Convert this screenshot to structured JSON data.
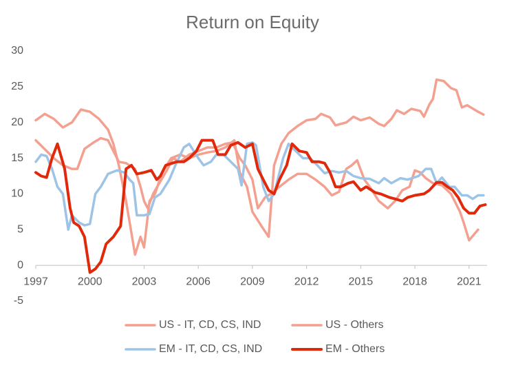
{
  "chart_data": {
    "type": "line",
    "title": "Return on Equity",
    "xlim": [
      1997,
      2022
    ],
    "xticks": [
      1997,
      2000,
      2003,
      2006,
      2009,
      2012,
      2015,
      2018,
      2021
    ],
    "ylim": [
      -5,
      30
    ],
    "yticks": [
      -5,
      0,
      5,
      10,
      15,
      20,
      25,
      30
    ],
    "grid": false,
    "legend": "bottom",
    "series": [
      {
        "name": "US - IT, CD, CS, IND",
        "color": "#f4a090",
        "x": [
          1997,
          1997.5,
          1998,
          1998.5,
          1999,
          1999.5,
          2000,
          2000.5,
          2001,
          2001.3,
          2001.6,
          2002,
          2002.3,
          2002.5,
          2002.8,
          2003,
          2003.3,
          2003.6,
          2004,
          2004.5,
          2005,
          2005.5,
          2006,
          2006.5,
          2007,
          2007.5,
          2008,
          2008.3,
          2008.7,
          2009,
          2009.5,
          2009.9,
          2010.2,
          2010.6,
          2011,
          2011.5,
          2012,
          2012.5,
          2012.8,
          2013.3,
          2013.6,
          2014.2,
          2014.6,
          2015,
          2015.5,
          2016,
          2016.3,
          2016.7,
          2017,
          2017.4,
          2017.8,
          2018.3,
          2018.5,
          2018.8,
          2019,
          2019.2,
          2019.6,
          2020,
          2020.3,
          2020.6,
          2020.9,
          2021.5,
          2021.8
        ],
        "values": [
          20.3,
          21.2,
          20.5,
          19.3,
          20,
          21.8,
          21.5,
          20.5,
          19,
          17,
          14,
          9,
          4.5,
          1.5,
          4,
          2.5,
          9,
          10,
          13,
          15,
          15.5,
          15,
          15.5,
          15.8,
          16,
          16.5,
          17.5,
          13,
          11,
          7.5,
          5.5,
          4,
          14,
          17,
          18.5,
          19.5,
          20.3,
          20.5,
          21.2,
          20.7,
          19.6,
          20,
          20.8,
          20.3,
          20.7,
          19.8,
          19.5,
          20.5,
          21.7,
          21.2,
          21.9,
          21.6,
          20.8,
          22.5,
          23.3,
          26,
          25.8,
          24.8,
          24.5,
          22.1,
          22.4,
          21.5,
          21.1
        ]
      },
      {
        "name": "US - Others",
        "color": "#f4a090",
        "x": [
          1997,
          1997.4,
          1998,
          1998.5,
          1999,
          1999.3,
          1999.7,
          2000.2,
          2000.6,
          2001,
          2001.3,
          2001.6,
          2002,
          2002.5,
          2002.8,
          2003,
          2003.2,
          2003.5,
          2003.8,
          2004.3,
          2004.6,
          2005,
          2005.5,
          2006,
          2006.5,
          2007,
          2007.5,
          2007.9,
          2008.3,
          2008.6,
          2009,
          2009.3,
          2009.7,
          2010,
          2010.5,
          2011,
          2011.5,
          2012,
          2012.5,
          2013,
          2013.4,
          2013.8,
          2014.2,
          2014.5,
          2014.8,
          2015.2,
          2015.5,
          2016,
          2016.5,
          2016.9,
          2017.3,
          2017.7,
          2018,
          2018.3,
          2018.6,
          2019,
          2019.5,
          2020,
          2020.5,
          2020.7,
          2021,
          2021.5
        ],
        "values": [
          17.5,
          16.5,
          15,
          14,
          13.5,
          13.5,
          16.3,
          17.2,
          17.8,
          17.5,
          16,
          14.5,
          14.3,
          13.5,
          11,
          9,
          8,
          10,
          11.3,
          13.5,
          15,
          14.5,
          15.5,
          16,
          16.5,
          16.5,
          17,
          17.2,
          15,
          14,
          12,
          8,
          9.5,
          10,
          11,
          12,
          12.8,
          12.8,
          12,
          11,
          9.8,
          10.3,
          13.5,
          14,
          14.7,
          12,
          11,
          9,
          8,
          9,
          10.5,
          11,
          13.3,
          13,
          12.2,
          11.5,
          11.2,
          10,
          7.5,
          6,
          3.5,
          5
        ]
      },
      {
        "name": "EM - IT, CD, CS, IND",
        "color": "#9dc3e6",
        "x": [
          1997,
          1997.3,
          1997.6,
          1997.9,
          1998.2,
          1998.5,
          1998.8,
          1999,
          1999.4,
          1999.7,
          2000,
          2000.3,
          2000.6,
          2001,
          2001.5,
          2001.9,
          2002.2,
          2002.4,
          2002.6,
          2003,
          2003.3,
          2003.6,
          2003.9,
          2004.4,
          2004.7,
          2005.2,
          2005.5,
          2006,
          2006.3,
          2006.7,
          2007,
          2007.4,
          2007.8,
          2008.2,
          2008.4,
          2008.7,
          2009,
          2009.2,
          2009.6,
          2009.9,
          2010.2,
          2010.7,
          2011,
          2011.4,
          2011.8,
          2012.2,
          2012.6,
          2013,
          2013.4,
          2013.8,
          2014.2,
          2014.6,
          2015,
          2015.5,
          2016,
          2016.3,
          2016.7,
          2017.2,
          2017.6,
          2018.2,
          2018.6,
          2018.9,
          2019.2,
          2019.5,
          2019.9,
          2020.2,
          2020.6,
          2020.9,
          2021.2,
          2021.5,
          2021.8
        ],
        "values": [
          14.5,
          15.5,
          15.3,
          13.5,
          11,
          10,
          5,
          7,
          6,
          5.6,
          5.8,
          10,
          11,
          12.8,
          13.3,
          13,
          12,
          11.5,
          7,
          7,
          7.2,
          9.5,
          10,
          12,
          13.8,
          16.5,
          17,
          15,
          14,
          14.5,
          15.5,
          15.5,
          14.5,
          13.5,
          11.2,
          17,
          17.2,
          16.8,
          11,
          9,
          10,
          15,
          17,
          16,
          15,
          15,
          14,
          12.9,
          13.2,
          13,
          13.2,
          12.5,
          12.2,
          12.1,
          11.5,
          12.2,
          11.5,
          12.2,
          12,
          12.5,
          13.5,
          13.5,
          11.5,
          12.3,
          11,
          11,
          9.8,
          9.8,
          9.3,
          9.8,
          9.8
        ]
      },
      {
        "name": "EM - Others",
        "color": "#e0290b",
        "x": [
          1997,
          1997.3,
          1997.6,
          1997.9,
          1998.2,
          1998.6,
          1998.9,
          1999.1,
          1999.4,
          1999.7,
          2000,
          2000.3,
          2000.6,
          2000.9,
          2001.3,
          2001.7,
          2002,
          2002.3,
          2002.6,
          2003,
          2003.4,
          2003.7,
          2003.9,
          2004.2,
          2004.8,
          2005.2,
          2005.5,
          2005.9,
          2006.2,
          2006.8,
          2007.1,
          2007.5,
          2007.8,
          2008.2,
          2008.6,
          2009,
          2009.3,
          2009.6,
          2009.9,
          2010.2,
          2010.5,
          2010.9,
          2011.2,
          2011.6,
          2012,
          2012.3,
          2012.7,
          2013,
          2013.3,
          2013.6,
          2013.9,
          2014.3,
          2014.6,
          2015,
          2015.3,
          2015.8,
          2016.1,
          2016.6,
          2016.9,
          2017.3,
          2017.6,
          2018,
          2018.5,
          2018.8,
          2019.2,
          2019.5,
          2019.8,
          2020.1,
          2020.4,
          2020.7,
          2021,
          2021.3,
          2021.6,
          2021.9
        ],
        "values": [
          13,
          12.5,
          12.3,
          15,
          17,
          13.5,
          8,
          6,
          5.5,
          4,
          -1,
          -0.5,
          0.5,
          3,
          4,
          5.5,
          13.5,
          14,
          12.8,
          13,
          13.3,
          12,
          12.5,
          14,
          14.5,
          14.5,
          15,
          16,
          17.5,
          17.5,
          15.5,
          15.5,
          16.8,
          17.2,
          16.5,
          17,
          13.5,
          12,
          10.5,
          10,
          12,
          14,
          17,
          16,
          15.8,
          14.5,
          14.5,
          14.3,
          13,
          11,
          11,
          11.5,
          11.7,
          10.5,
          11,
          10.2,
          10,
          9.5,
          9.3,
          9,
          9.5,
          9.8,
          10,
          10.5,
          11.6,
          11.6,
          11,
          10.5,
          9.5,
          8,
          7.3,
          7.3,
          8.3,
          8.5
        ]
      }
    ]
  }
}
